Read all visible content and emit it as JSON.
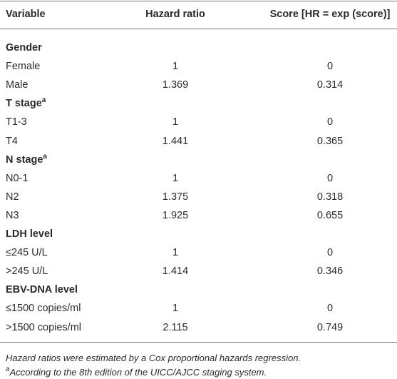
{
  "table": {
    "columns": [
      "Variable",
      "Hazard ratio",
      "Score [HR = exp (score)]"
    ],
    "sections": [
      {
        "label": "Gender",
        "rows": [
          [
            "Female",
            "1",
            "0"
          ],
          [
            "Male",
            "1.369",
            "0.314"
          ]
        ]
      },
      {
        "label": "T stage",
        "sup": "a",
        "rows": [
          [
            "T1-3",
            "1",
            "0"
          ],
          [
            "T4",
            "1.441",
            "0.365"
          ]
        ]
      },
      {
        "label": "N stage",
        "sup": "a",
        "rows": [
          [
            "N0-1",
            "1",
            "0"
          ],
          [
            "N2",
            "1.375",
            "0.318"
          ],
          [
            "N3",
            "1.925",
            "0.655"
          ]
        ]
      },
      {
        "label": "LDH level",
        "rows": [
          [
            "≤245 U/L",
            "1",
            "0"
          ],
          [
            ">245 U/L",
            "1.414",
            "0.346"
          ]
        ]
      },
      {
        "label": "EBV-DNA level",
        "rows": [
          [
            "≤1500 copies/ml",
            "1",
            "0"
          ],
          [
            ">1500 copies/ml",
            "2.115",
            "0.749"
          ]
        ]
      }
    ]
  },
  "footnotes": [
    {
      "text": "Hazard ratios were estimated by a Cox proportional hazards regression."
    },
    {
      "sup": "a",
      "text": "According to the 8th edition of the UICC/AJCC staging system."
    }
  ]
}
